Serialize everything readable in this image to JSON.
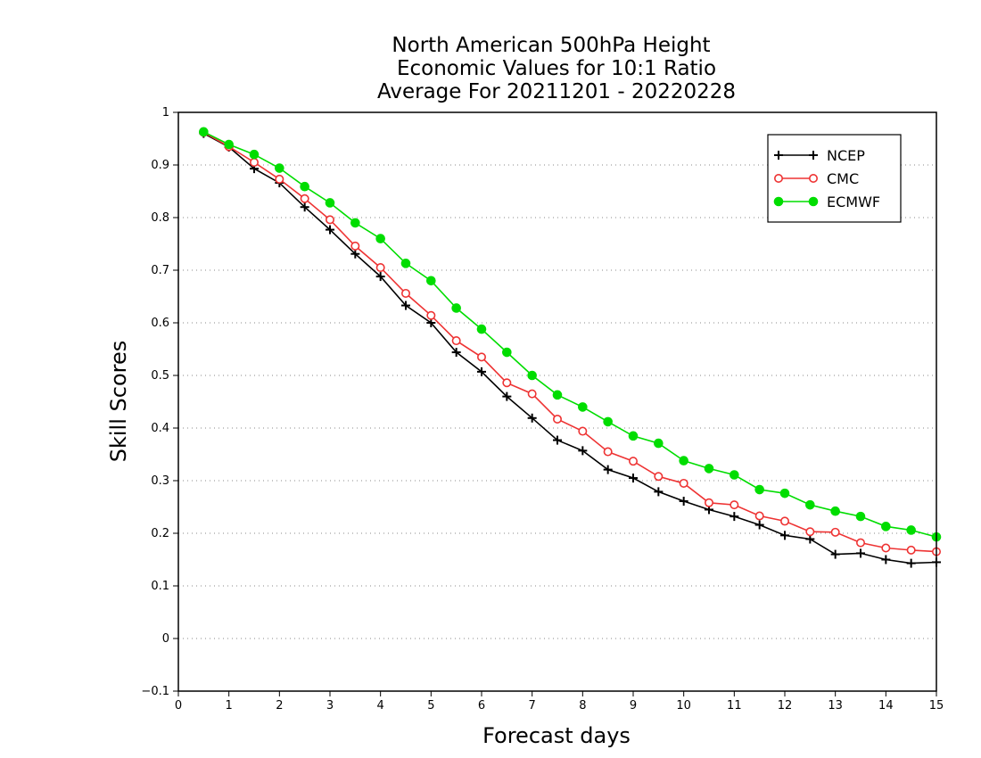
{
  "chart_data": {
    "type": "line",
    "title_lines": [
      "North American 500hPa Height",
      "Economic Values for 10:1 Ratio",
      "Average For 20211201 - 20220228"
    ],
    "xlabel": "Forecast days",
    "ylabel": "Skill Scores",
    "xlim": [
      0,
      15
    ],
    "ylim": [
      -0.1,
      1
    ],
    "xticks": [
      "0",
      "1",
      "2",
      "3",
      "4",
      "5",
      "6",
      "7",
      "8",
      "9",
      "10",
      "11",
      "12",
      "13",
      "14",
      "15"
    ],
    "yticks": [
      "−0.1",
      "0",
      "0.1",
      "0.2",
      "0.3",
      "0.4",
      "0.5",
      "0.6",
      "0.7",
      "0.8",
      "0.9",
      "1"
    ],
    "grid": "horizontal dotted",
    "legend_position": "top-right",
    "x": [
      0.5,
      1,
      1.5,
      2,
      2.5,
      3,
      3.5,
      4,
      4.5,
      5,
      5.5,
      6,
      6.5,
      7,
      7.5,
      8,
      8.5,
      9,
      9.5,
      10,
      10.5,
      11,
      11.5,
      12,
      12.5,
      13,
      13.5,
      14,
      14.5,
      15
    ],
    "series": [
      {
        "name": "NCEP",
        "color": "#000000",
        "marker": "plus",
        "values": [
          0.96,
          0.934,
          0.893,
          0.866,
          0.82,
          0.777,
          0.731,
          0.688,
          0.633,
          0.6,
          0.544,
          0.507,
          0.46,
          0.419,
          0.377,
          0.357,
          0.321,
          0.305,
          0.279,
          0.261,
          0.245,
          0.232,
          0.216,
          0.196,
          0.189,
          0.16,
          0.162,
          0.15,
          0.143,
          0.145
        ]
      },
      {
        "name": "CMC",
        "color": "#ee3333",
        "marker": "open-circle",
        "values": [
          0.962,
          0.935,
          0.905,
          0.873,
          0.836,
          0.796,
          0.746,
          0.705,
          0.656,
          0.614,
          0.566,
          0.535,
          0.486,
          0.465,
          0.417,
          0.394,
          0.355,
          0.337,
          0.308,
          0.295,
          0.258,
          0.254,
          0.233,
          0.223,
          0.203,
          0.202,
          0.182,
          0.172,
          0.168,
          0.165
        ]
      },
      {
        "name": "ECMWF",
        "color": "#00dd00",
        "marker": "filled-circle",
        "values": [
          0.963,
          0.939,
          0.92,
          0.894,
          0.859,
          0.828,
          0.79,
          0.76,
          0.713,
          0.68,
          0.628,
          0.588,
          0.544,
          0.5,
          0.463,
          0.44,
          0.412,
          0.385,
          0.371,
          0.338,
          0.323,
          0.311,
          0.283,
          0.276,
          0.254,
          0.242,
          0.232,
          0.213,
          0.206,
          0.193
        ]
      }
    ]
  }
}
